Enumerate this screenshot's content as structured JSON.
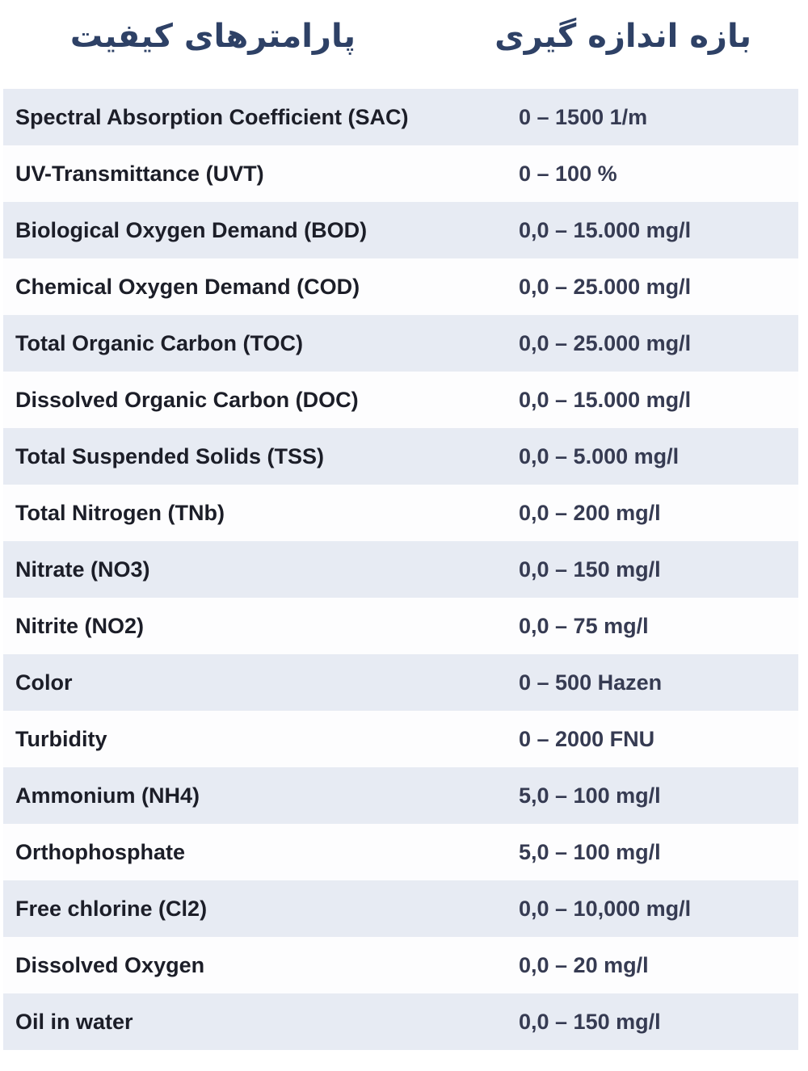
{
  "header": {
    "left_title": "پارامترهای کیفیت",
    "right_title": "بازه اندازه گیری"
  },
  "table": {
    "rows": [
      {
        "parameter": "Spectral Absorption Coefficient (SAC)",
        "range": "0 – 1500 1/m"
      },
      {
        "parameter": "UV-Transmittance (UVT)",
        "range": "0 – 100 %"
      },
      {
        "parameter": "Biological Oxygen Demand (BOD)",
        "range": "0,0 – 15.000 mg/l"
      },
      {
        "parameter": "Chemical Oxygen Demand (COD)",
        "range": "0,0 – 25.000 mg/l"
      },
      {
        "parameter": "Total Organic Carbon (TOC)",
        "range": "0,0 – 25.000 mg/l"
      },
      {
        "parameter": "Dissolved Organic Carbon (DOC)",
        "range": "0,0 – 15.000 mg/l"
      },
      {
        "parameter": "Total Suspended Solids (TSS)",
        "range": "0,0 – 5.000 mg/l"
      },
      {
        "parameter": "Total Nitrogen (TNb)",
        "range": "0,0 – 200 mg/l"
      },
      {
        "parameter": "Nitrate (NO3)",
        "range": "0,0 – 150 mg/l"
      },
      {
        "parameter": "Nitrite (NO2)",
        "range": "0,0 – 75 mg/l"
      },
      {
        "parameter": "Color",
        "range": "0 – 500 Hazen"
      },
      {
        "parameter": "Turbidity",
        "range": "0 – 2000 FNU"
      },
      {
        "parameter": "Ammonium (NH4)",
        "range": "5,0 – 100 mg/l"
      },
      {
        "parameter": "Orthophosphate",
        "range": "5,0 – 100 mg/l"
      },
      {
        "parameter": "Free chlorine (Cl2)",
        "range": "0,0 – 10,000 mg/l"
      },
      {
        "parameter": "Dissolved Oxygen",
        "range": "0,0 – 20 mg/l"
      },
      {
        "parameter": "Oil in water",
        "range": "0,0 – 150 mg/l"
      }
    ]
  },
  "colors": {
    "header_text": "#2e4166",
    "row_alt_bg": "#e7ebf3",
    "row_bg": "#fdfdfe",
    "parameter_text": "#1c1e28",
    "range_text": "#363b52"
  }
}
